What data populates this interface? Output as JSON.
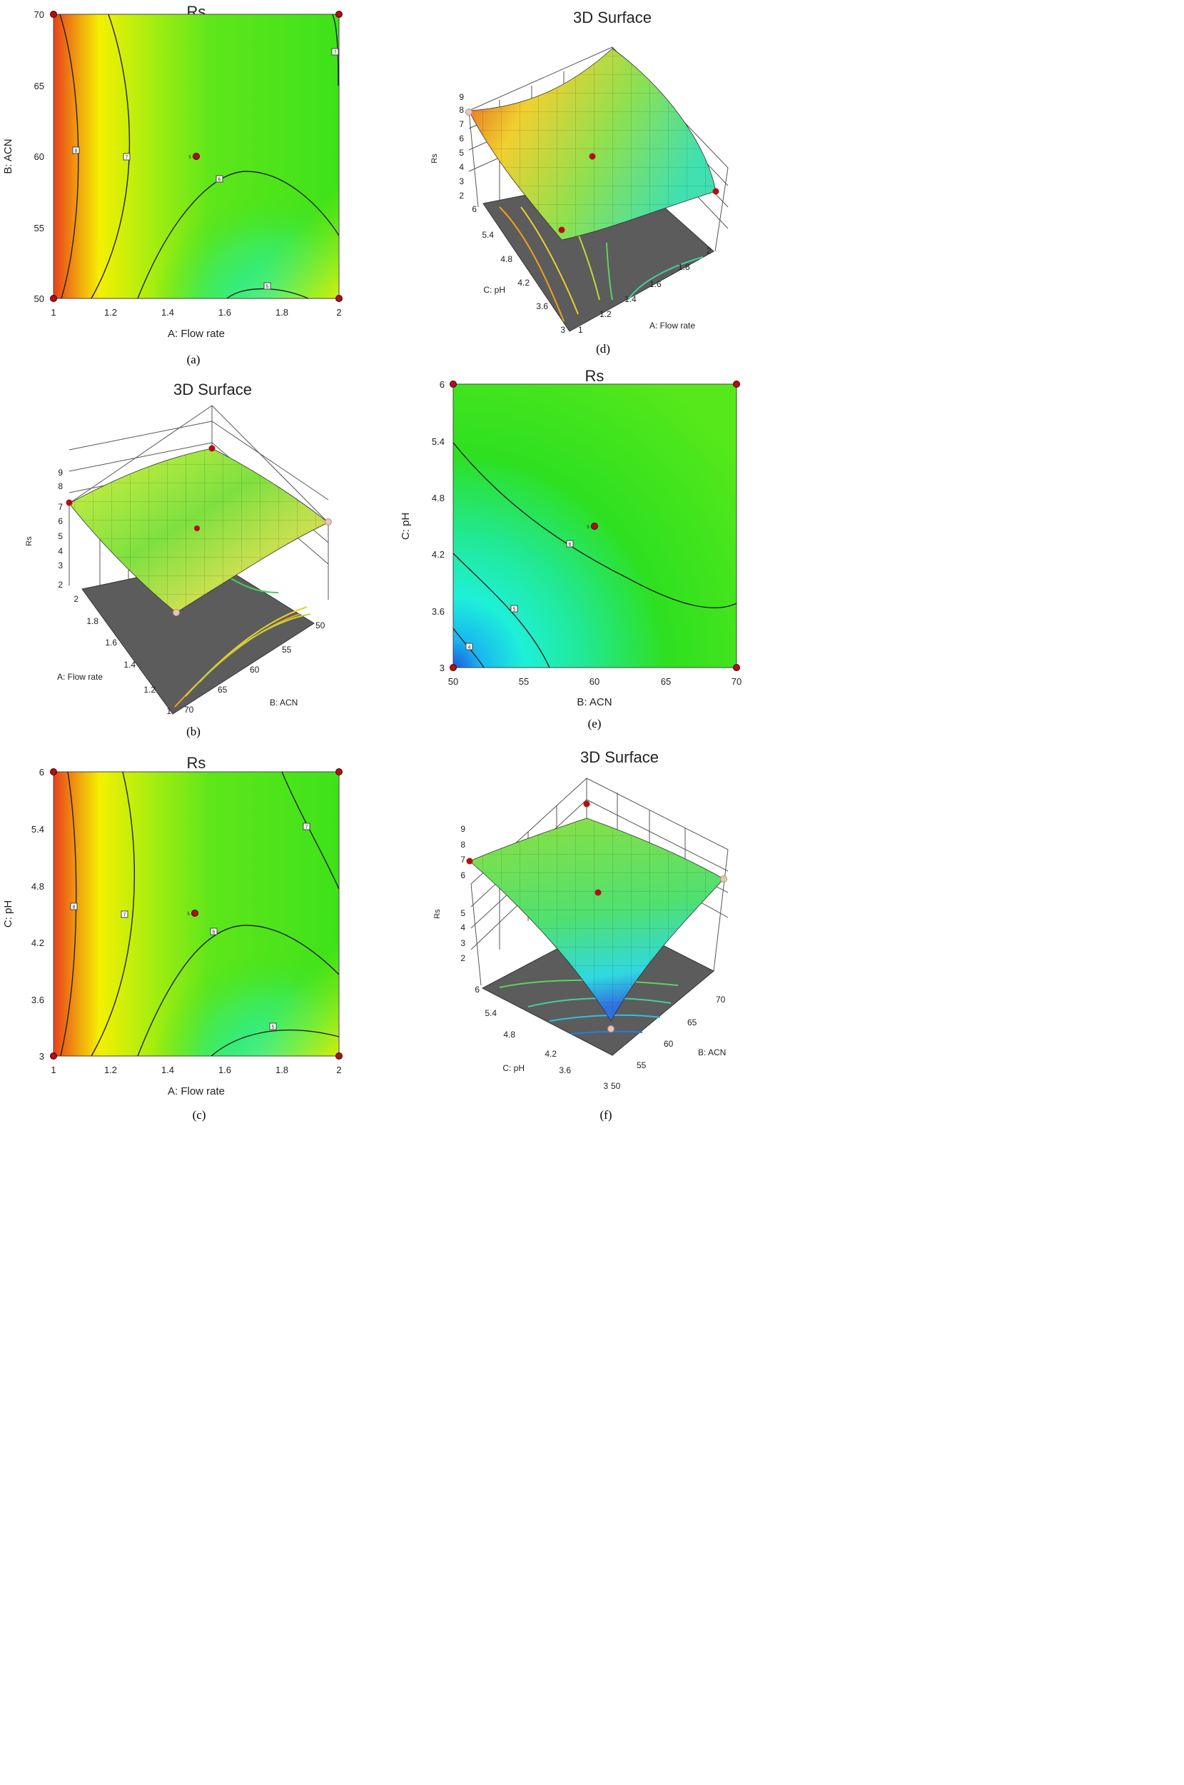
{
  "chart_data": [
    {
      "panel": "(a)",
      "type": "contour",
      "title": "Rs",
      "xlabel": "A: Flow rate",
      "ylabel": "B: ACN",
      "xlim": [
        1,
        2
      ],
      "ylim": [
        50,
        70
      ],
      "xticks": [
        "1",
        "1.2",
        "1.4",
        "1.6",
        "1.8",
        "2"
      ],
      "yticks": [
        "50",
        "55",
        "60",
        "65",
        "70"
      ],
      "center_point": {
        "x": 1.5,
        "y": 60,
        "label": "5"
      },
      "design_points": [
        [
          1,
          50
        ],
        [
          1,
          70
        ],
        [
          2,
          50
        ],
        [
          2,
          70
        ]
      ],
      "contour_labels": [
        "8",
        "7",
        "6",
        "5",
        "7"
      ]
    },
    {
      "panel": "(b)",
      "type": "surface",
      "title": "3D Surface",
      "zlabel": "Rs",
      "zticks": [
        "2",
        "3",
        "4",
        "5",
        "6",
        "7",
        "8",
        "9"
      ],
      "axis1_label": "A: Flow rate",
      "axis1_ticks": [
        "1",
        "1.2",
        "1.4",
        "1.6",
        "1.8",
        "2"
      ],
      "axis2_label": "B: ACN",
      "axis2_ticks": [
        "70",
        "65",
        "60",
        "55",
        "50"
      ]
    },
    {
      "panel": "(c)",
      "type": "contour",
      "title": "Rs",
      "xlabel": "A: Flow rate",
      "ylabel": "C: pH",
      "xlim": [
        1,
        2
      ],
      "ylim": [
        3,
        6
      ],
      "xticks": [
        "1",
        "1.2",
        "1.4",
        "1.6",
        "1.8",
        "2"
      ],
      "yticks": [
        "3",
        "3.6",
        "4.2",
        "4.8",
        "5.4",
        "6"
      ],
      "center_point": {
        "x": 1.5,
        "y": 4.5,
        "label": "5"
      },
      "design_points": [
        [
          1,
          3
        ],
        [
          1,
          6
        ],
        [
          2,
          3
        ],
        [
          2,
          6
        ]
      ],
      "contour_labels": [
        "8",
        "7",
        "6",
        "5",
        "7"
      ]
    },
    {
      "panel": "(d)",
      "type": "surface",
      "title": "3D Surface",
      "zlabel": "Rs",
      "zticks": [
        "2",
        "3",
        "4",
        "5",
        "6",
        "7",
        "8",
        "9"
      ],
      "axis1_label": "C: pH",
      "axis1_ticks": [
        "6",
        "5.4",
        "4.8",
        "4.2",
        "3.6",
        "3"
      ],
      "axis2_label": "A: Flow rate",
      "axis2_ticks": [
        "1",
        "1.2",
        "1.4",
        "1.6",
        "1.8",
        "2"
      ]
    },
    {
      "panel": "(e)",
      "type": "contour",
      "title": "Rs",
      "xlabel": "B: ACN",
      "ylabel": "C: pH",
      "xlim": [
        50,
        70
      ],
      "ylim": [
        3,
        6
      ],
      "xticks": [
        "50",
        "55",
        "60",
        "65",
        "70"
      ],
      "yticks": [
        "3",
        "3.6",
        "4.2",
        "4.8",
        "5.4",
        "6"
      ],
      "center_point": {
        "x": 60,
        "y": 4.5,
        "label": "5"
      },
      "design_points": [
        [
          50,
          3
        ],
        [
          50,
          6
        ],
        [
          70,
          3
        ],
        [
          70,
          6
        ]
      ],
      "contour_labels": [
        "6",
        "5",
        "4"
      ]
    },
    {
      "panel": "(f)",
      "type": "surface",
      "title": "3D Surface",
      "zlabel": "Rs",
      "zticks": [
        "2",
        "3",
        "4",
        "5",
        "6",
        "7",
        "8",
        "9"
      ],
      "axis1_label": "C: pH",
      "axis1_ticks": [
        "6",
        "5.4",
        "4.8",
        "4.2",
        "3.6",
        "3"
      ],
      "axis2_label": "B: ACN",
      "axis2_ticks": [
        "50",
        "55",
        "60",
        "65",
        "70"
      ]
    }
  ],
  "captions": [
    "(a)",
    "(b)",
    "(c)",
    "(d)",
    "(e)",
    "(f)"
  ],
  "colors": {
    "red_orange": "#e8401a",
    "yellow": "#f4f000",
    "green": "#33e01a",
    "cyan": "#20f0d0",
    "blue": "#1a60e0",
    "surface_floor": "#5c5c5c",
    "design_point": "#b01010"
  }
}
